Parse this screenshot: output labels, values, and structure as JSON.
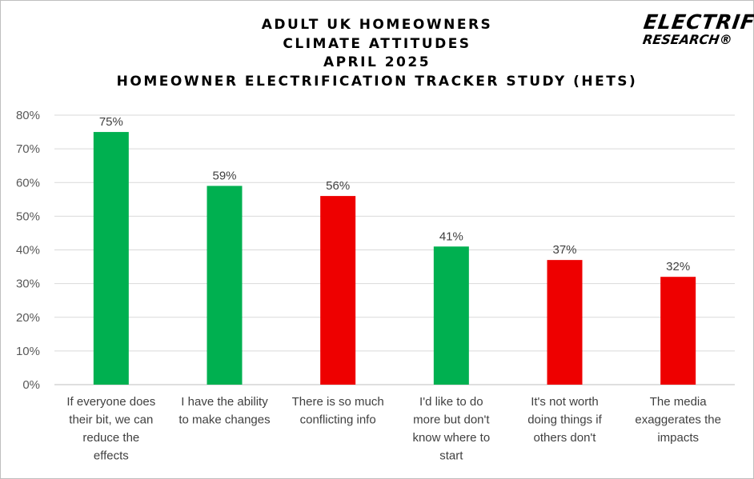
{
  "title": {
    "line1": "ADULT UK HOMEOWNERS",
    "line2": "CLIMATE ATTITUDES",
    "line3": "APRIL 2025",
    "line4": "HOMEOWNER ELECTRIFICATION TRACKER STUDY (HETS)"
  },
  "logo": {
    "line1": "ELECTRIFY",
    "line2": "RESEARCH®"
  },
  "chart_data": {
    "type": "bar",
    "categories": [
      "If everyone does their bit, we can reduce the effects",
      "I have the ability to make changes",
      "There is so much conflicting info",
      "I'd like to do more but don't know where to start",
      "It's not worth doing things if others don't",
      "The media exaggerates the impacts"
    ],
    "category_lines": [
      [
        "If everyone does",
        "their bit, we can",
        "reduce the",
        "effects"
      ],
      [
        "I have the ability",
        "to make changes"
      ],
      [
        "There is so much",
        "conflicting info"
      ],
      [
        "I'd like to do",
        "more but don't",
        "know where to",
        "start"
      ],
      [
        "It's not worth",
        "doing things if",
        "others don't"
      ],
      [
        "The media",
        "exaggerates the",
        "impacts"
      ]
    ],
    "values": [
      75,
      59,
      56,
      41,
      37,
      32
    ],
    "data_labels": [
      "75%",
      "59%",
      "56%",
      "41%",
      "37%",
      "32%"
    ],
    "bar_colors": [
      "#00b050",
      "#00b050",
      "#ee0000",
      "#00b050",
      "#ee0000",
      "#ee0000"
    ],
    "ylim": [
      0,
      80
    ],
    "yticks": [
      0,
      10,
      20,
      30,
      40,
      50,
      60,
      70,
      80
    ],
    "ytick_labels": [
      "0%",
      "10%",
      "20%",
      "30%",
      "40%",
      "50%",
      "60%",
      "70%",
      "80%"
    ],
    "grid": true,
    "legend": "none",
    "xlabel": "",
    "ylabel": ""
  }
}
